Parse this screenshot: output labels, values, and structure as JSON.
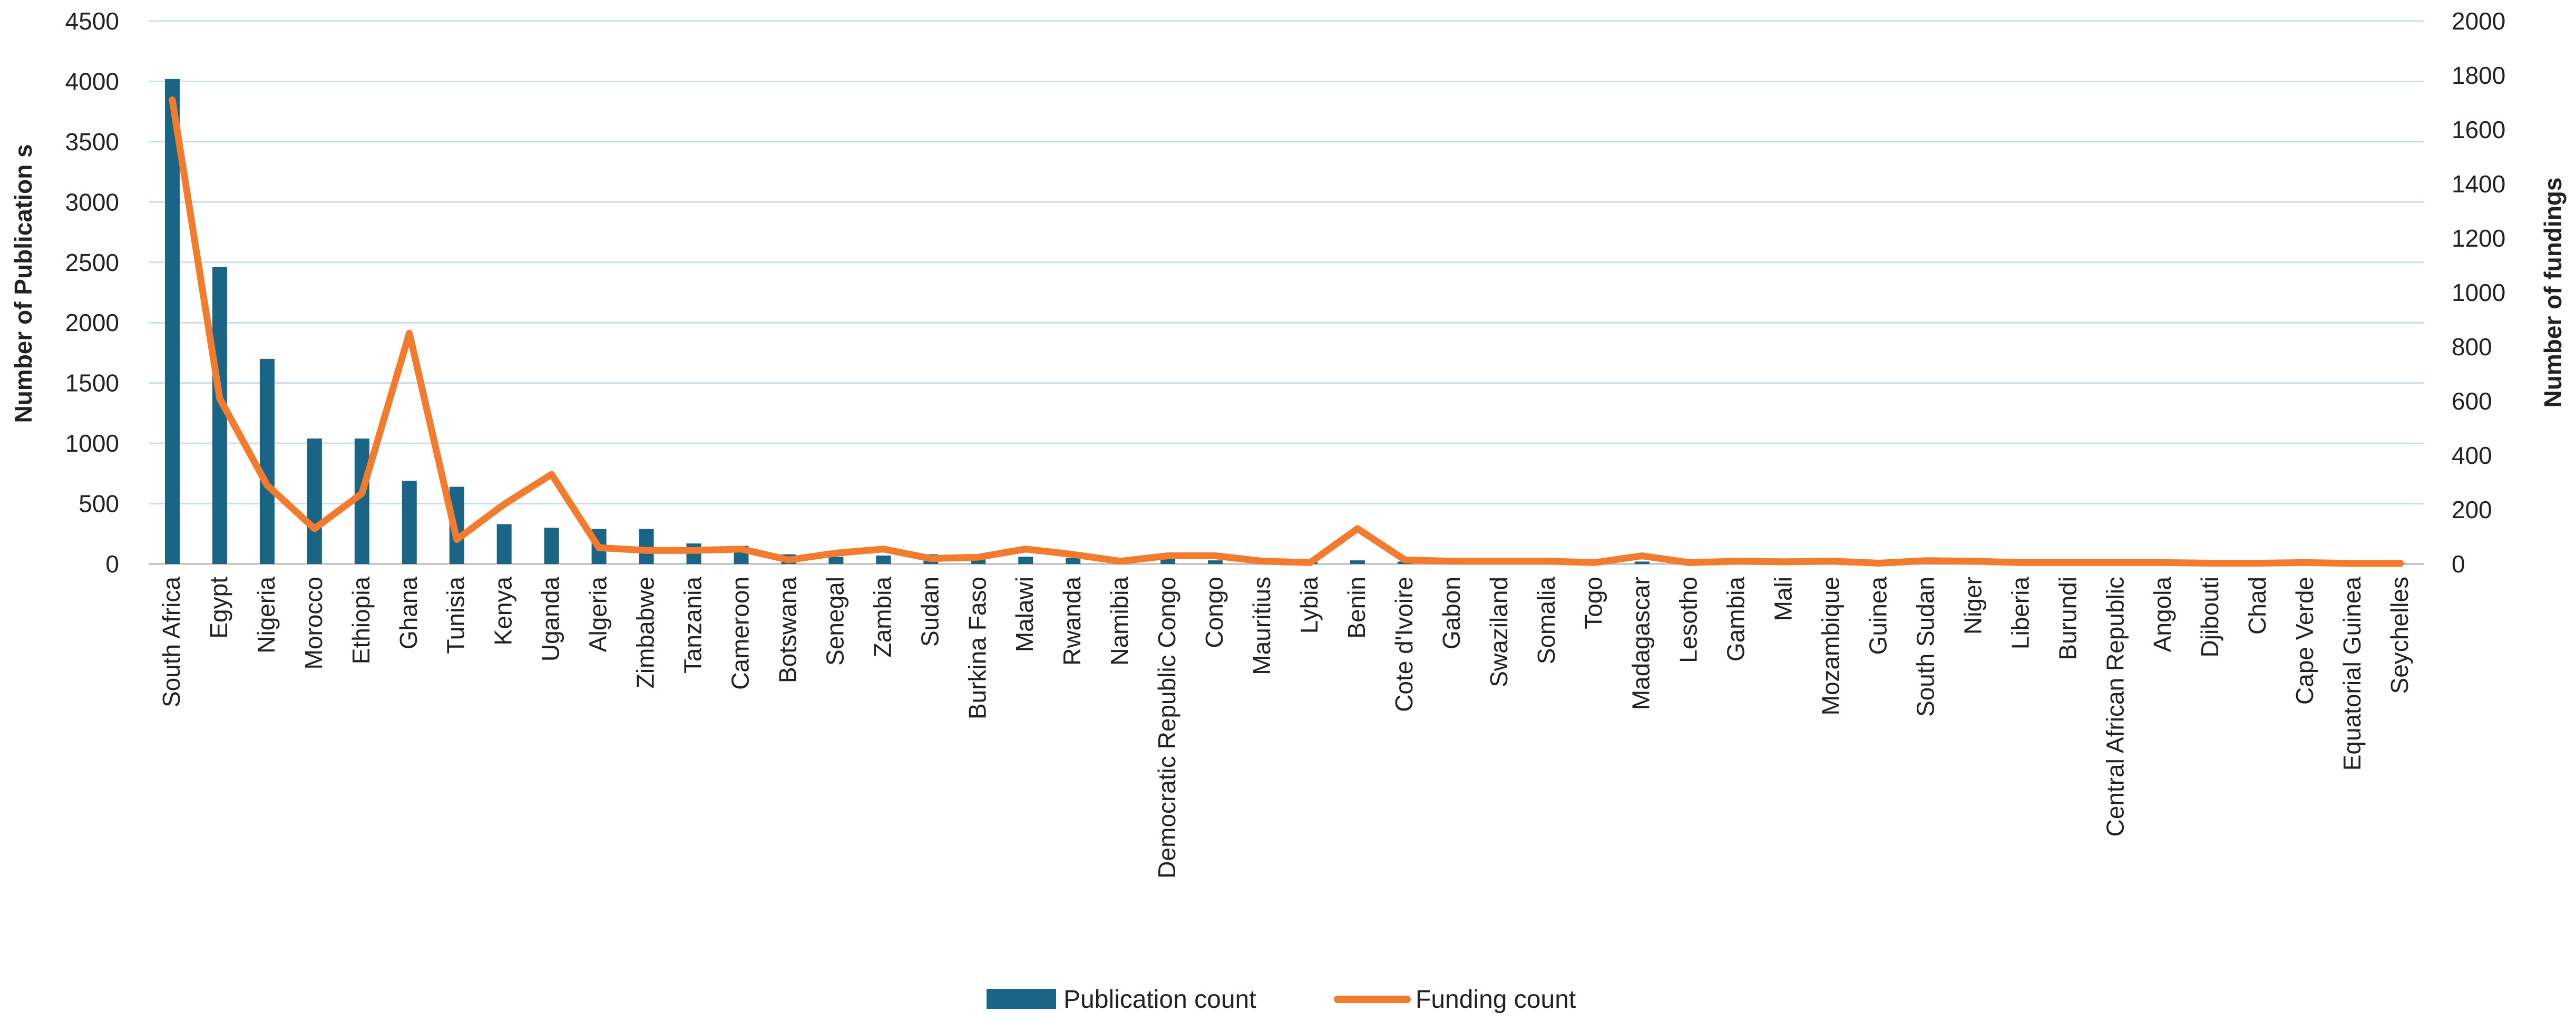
{
  "chart_data": {
    "type": "bar",
    "categories": [
      "South Africa",
      "Egypt",
      "Nigeria",
      "Morocco",
      "Ethiopia",
      "Ghana",
      "Tunisia",
      "Kenya",
      "Uganda",
      "Algeria",
      "Zimbabwe",
      "Tanzania",
      "Cameroon",
      "Botswana",
      "Senegal",
      "Zambia",
      "Sudan",
      "Burkina Faso",
      "Malawi",
      "Rwanda",
      "Namibia",
      "Democratic Republic Congo",
      "Congo",
      "Mauritius",
      "Lybia",
      "Benin",
      "Cote d'Ivoire",
      "Gabon",
      "Swaziland",
      "Somalia",
      "Togo",
      "Madagascar",
      "Lesotho",
      "Gambia",
      "Mali",
      "Mozambique",
      "Guinea",
      "South Sudan",
      "Niger",
      "Liberia",
      "Burundi",
      "Central African Republic",
      "Angola",
      "Djibouti",
      "Chad",
      "Cape Verde",
      "Equatorial Guinea",
      "Seychelles"
    ],
    "series": [
      {
        "name": "Publication count",
        "type": "bar",
        "axis": "left",
        "color": "#1a6585",
        "values": [
          4020,
          2460,
          1700,
          1040,
          1040,
          690,
          640,
          330,
          300,
          290,
          290,
          170,
          150,
          80,
          60,
          70,
          80,
          40,
          60,
          50,
          50,
          40,
          30,
          20,
          20,
          30,
          20,
          10,
          10,
          10,
          10,
          20,
          10,
          10,
          10,
          10,
          5,
          10,
          10,
          5,
          5,
          5,
          5,
          5,
          5,
          5,
          3,
          2
        ]
      },
      {
        "name": "Funding count",
        "type": "line",
        "axis": "right",
        "color": "#f37b2d",
        "values": [
          1710,
          610,
          290,
          130,
          260,
          850,
          90,
          220,
          330,
          60,
          50,
          50,
          55,
          15,
          40,
          55,
          20,
          25,
          55,
          35,
          10,
          30,
          30,
          10,
          5,
          130,
          15,
          10,
          10,
          10,
          5,
          30,
          5,
          10,
          8,
          10,
          3,
          12,
          10,
          5,
          5,
          5,
          5,
          3,
          3,
          5,
          2,
          2
        ]
      }
    ],
    "y_left": {
      "label": "Number of Publication s",
      "min": 0,
      "max": 4500,
      "ticks": [
        0,
        500,
        1000,
        1500,
        2000,
        2500,
        3000,
        3500,
        4000,
        4500
      ]
    },
    "y_right": {
      "label": "Number of fundings",
      "min": 0,
      "max": 2000,
      "ticks": [
        0,
        200,
        400,
        600,
        800,
        1000,
        1200,
        1400,
        1600,
        1800,
        2000
      ]
    },
    "grid": true,
    "legend_position": "bottom"
  },
  "legend": {
    "items": [
      "Publication count",
      "Funding count"
    ]
  }
}
